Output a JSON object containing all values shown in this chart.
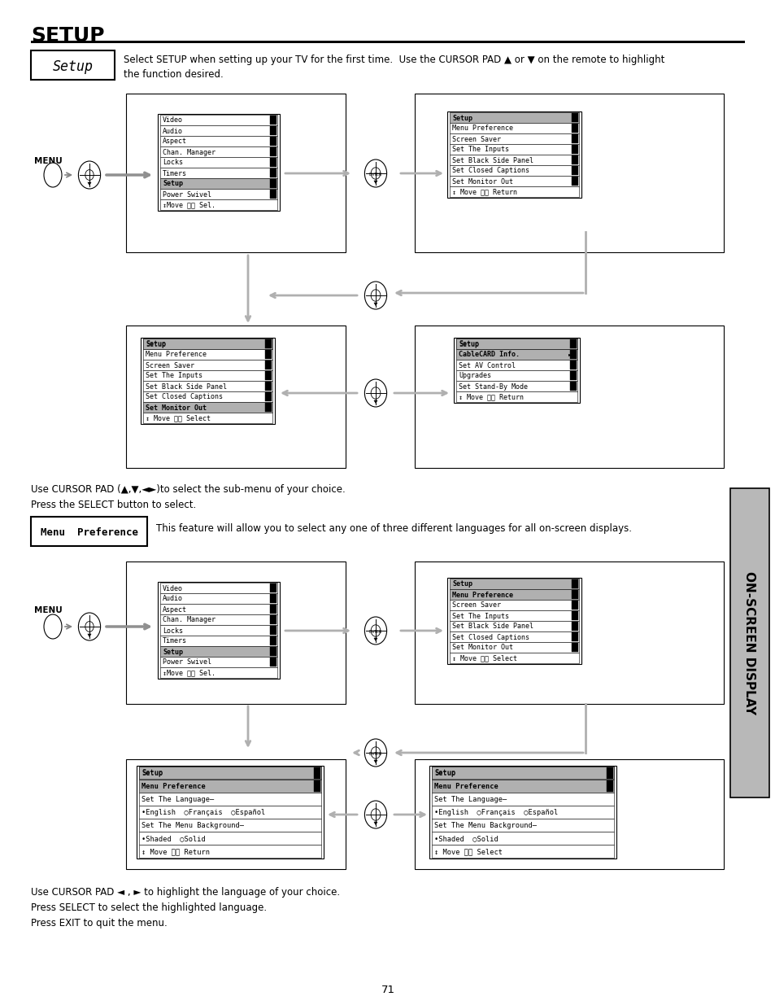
{
  "page_bg": "#ffffff",
  "title": "SETUP",
  "setup_box_label": "Setup",
  "setup_desc": "Select SETUP when setting up your TV for the first time.  Use the CURSOR PAD ▲ or ▼ on the remote to highlight\nthe function desired.",
  "cursor_pad_text": "Use CURSOR PAD (▲,▼,◄►)to select the sub-menu of your choice.\nPress the SELECT button to select.",
  "menu_pref_box_label": "Menu  Preference",
  "menu_pref_desc": "This feature will allow you to select any one of three different languages for all on-screen displays.",
  "cursor_pad_text2": "Use CURSOR PAD ◄ , ► to highlight the language of your choice.\nPress SELECT to select the highlighted language.\nPress EXIT to quit the menu.",
  "page_number": "71",
  "sideways_text": "ON-SCREEN DISPLAY"
}
